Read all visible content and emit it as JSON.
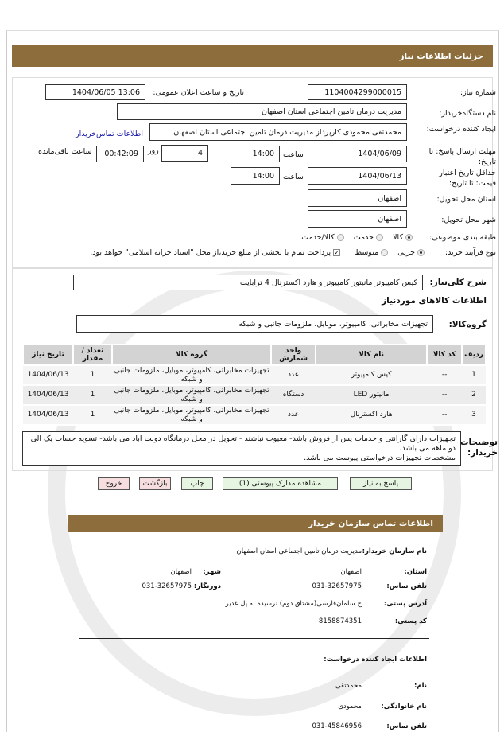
{
  "colors": {
    "header": "#8c6d3b",
    "link": "#1a1aaa"
  },
  "title": "جزئیات اطلاعات نیاز",
  "form": {
    "need_number_label": "شماره نیاز:",
    "need_number": "1104004299000015",
    "announce_label": "تاریخ و ساعت اعلان عمومی:",
    "announce_value": "1404/06/05 13:06",
    "buyer_label": "نام دستگاه‌خریدار:",
    "buyer": "مدیریت درمان تامین اجتماعی استان اصفهان",
    "creator_label": "ایجاد کننده درخواست:",
    "creator": "محمدتقی محمودی کارپرداز مدیریت درمان تامین اجتماعی استان اصفهان",
    "contact_link": "اطلاعات تماس‌خریدار",
    "deadline_label": "مهلت ارسال پاسخ: تا تاریخ:",
    "deadline_date": "1404/06/09",
    "time_label": "ساعت",
    "deadline_time": "14:00",
    "days_value": "4",
    "days_label": "روز",
    "remaining_time": "00:42:09",
    "remaining_label": "ساعت باقی‌مانده",
    "validity_label": "حداقل تاریخ اعتبار قیمت: تا تاریخ:",
    "validity_date": "1404/06/13",
    "validity_time": "14:00",
    "province_label": "استان محل تحویل:",
    "province": "اصفهان",
    "city_label": "شهر محل تحویل:",
    "city": "اصفهان",
    "category_label": "طبقه بندی موضوعی:",
    "category_options": [
      "کالا",
      "خدمت",
      "کالا/خدمت"
    ],
    "category_selected": "کالا",
    "process_label": "نوع فرآیند خرید:",
    "process_options": [
      "جزیی",
      "متوسط"
    ],
    "process_selected": "جزیی",
    "payment_note": "پرداخت تمام یا بخشی از مبلغ خرید،از محل \"اسناد خزانه اسلامی\" خواهد بود.",
    "payment_checked": true
  },
  "summary_label": "شرح کلی‌نیاز:",
  "summary": "کیس کامپیوتر  مانیتور کامپیوتر و هارد اکسترنال 4 ترابایت",
  "goods_heading": "اطلاعات کالاهای موردنیاز",
  "group_label": "گروه‌کالا:",
  "group": "تجهیزات مخابراتی، کامپیوتر، موبایل، ملزومات جانبی و شبکه",
  "table": {
    "headers": [
      "ردیف",
      "کد کالا",
      "نام کالا",
      "واحد شمارش",
      "گروه کالا",
      "تعداد / مقدار",
      "تاریخ نیاز"
    ],
    "rows": [
      [
        "1",
        "--",
        "کیس کامپیوتر",
        "عدد",
        "تجهیزات مخابراتی، کامپیوتر، موبایل، ملزومات جانبی و شبکه",
        "1",
        "1404/06/13"
      ],
      [
        "2",
        "--",
        "مانیتور LED",
        "دستگاه",
        "تجهیزات مخابراتی، کامپیوتر، موبایل، ملزومات جانبی و شبکه",
        "1",
        "1404/06/13"
      ],
      [
        "3",
        "--",
        "هارد اکسترنال",
        "عدد",
        "تجهیزات مخابراتی، کامپیوتر، موبایل، ملزومات جانبی و شبکه",
        "1",
        "1404/06/13"
      ]
    ]
  },
  "notes_label": "توضیحات خریدار:",
  "notes": "تجهیزات دارای گارانتی و خدمات پس از فروش باشد- معیوب نباشند - تحویل در محل درمانگاه دولت اباد می باشد- تسویه حساب یک الی دو ماهه می باشد.\nمشخصات تجهیزات درخواستی پیوست می باشد.",
  "buttons": {
    "reply": "پاسخ به نیاز",
    "attachments": "مشاهده مدارک پیوستی (1)",
    "print": "چاپ",
    "back": "بازگشت",
    "exit": "خروج"
  },
  "contact": {
    "title": "اطلاعات تماس سازمان خریدار",
    "org_label": "نام سازمان خریدار:",
    "org": "مدیریت درمان تامین اجتماعی استان اصفهان",
    "province_label": "استان:",
    "province": "اصفهان",
    "city_label": "شهر:",
    "city": "اصفهان",
    "phone_label": "تلفن تماس:",
    "phone": "031-32657975",
    "fax_label": "دورنگار:",
    "fax": "031-32657975",
    "address_label": "آدرس پستی:",
    "address": "خ سلمان‌فارسی(مشتاق دوم) نرسیده به پل غدیر",
    "postal_label": "کد پستی:",
    "postal": "8158874351",
    "creator_heading": "اطلاعات ایجاد کننده درخواست:",
    "first_name_label": "نام:",
    "first_name": "محمدتقی",
    "last_name_label": "نام خانوادگی:",
    "last_name": "محمودی",
    "creator_phone_label": "تلفن تماس:",
    "creator_phone": "031-45846956"
  }
}
